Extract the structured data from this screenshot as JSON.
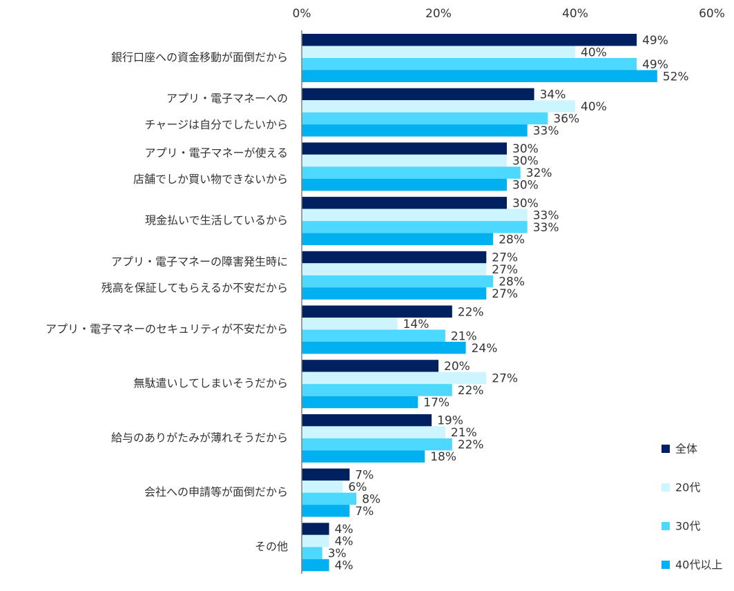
{
  "chart_data": {
    "type": "bar",
    "orientation": "horizontal",
    "title": "",
    "xlabel": "",
    "ylabel": "",
    "xlim": [
      0,
      60
    ],
    "x_ticks": [
      "0%",
      "20%",
      "40%",
      "60%"
    ],
    "x_tick_values": [
      0,
      20,
      40,
      60
    ],
    "value_suffix": "%",
    "grid": false,
    "legend_position": "bottom-right",
    "categories": [
      [
        "銀行口座への資金移動が面倒だから"
      ],
      [
        "アプリ・電子マネーへの",
        "チャージは自分でしたいから"
      ],
      [
        "アプリ・電子マネーが使える",
        "店舗でしか買い物できないから"
      ],
      [
        "現金払いで生活しているから"
      ],
      [
        "アプリ・電子マネーの障害発生時に",
        "残高を保証してもらえるか不安だから"
      ],
      [
        "アプリ・電子マネーのセキュリティが不安だから"
      ],
      [
        "無駄遣いしてしまいそうだから"
      ],
      [
        "給与のありがたみが薄れそうだから"
      ],
      [
        "会社への申請等が面倒だから"
      ],
      [
        "その他"
      ]
    ],
    "series": [
      {
        "name": "全体",
        "color": "#002060",
        "values": [
          49,
          34,
          30,
          30,
          27,
          22,
          20,
          19,
          7,
          4
        ]
      },
      {
        "name": "20代",
        "color": "#CCF5FF",
        "values": [
          40,
          40,
          30,
          33,
          27,
          14,
          27,
          21,
          6,
          4
        ]
      },
      {
        "name": "30代",
        "color": "#4DD8FF",
        "values": [
          49,
          36,
          32,
          33,
          28,
          21,
          22,
          22,
          8,
          3
        ]
      },
      {
        "name": "40代以上",
        "color": "#00B0F0",
        "values": [
          52,
          33,
          30,
          28,
          27,
          24,
          17,
          18,
          7,
          4
        ]
      }
    ]
  }
}
